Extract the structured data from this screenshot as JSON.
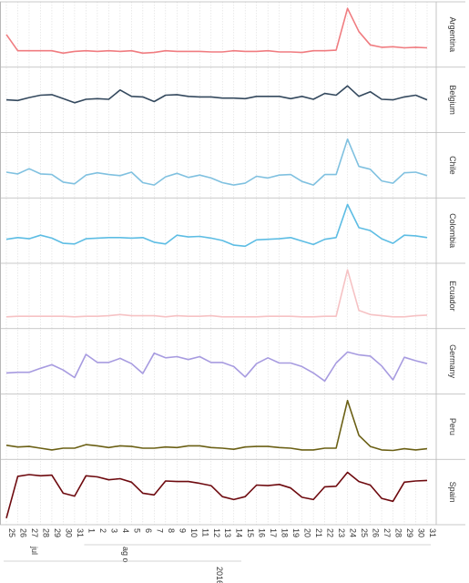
{
  "chart_data": {
    "type": "line",
    "title": "",
    "x": [
      "25",
      "26",
      "27",
      "28",
      "29",
      "30",
      "31",
      "1",
      "2",
      "3",
      "4",
      "5",
      "6",
      "7",
      "8",
      "9",
      "10",
      "11",
      "12",
      "13",
      "14",
      "15",
      "16",
      "17",
      "18",
      "19",
      "20",
      "21",
      "22",
      "23",
      "24",
      "25",
      "26",
      "27",
      "28",
      "29",
      "30",
      "31"
    ],
    "month_labels": [
      {
        "label": "jul",
        "start": 0
      },
      {
        "label": "ag o",
        "start": 7
      }
    ],
    "year_label": "2016",
    "grid": true,
    "series": [
      {
        "name": "Argentina",
        "color": "#f07c80",
        "values": [
          50,
          22,
          22,
          22,
          22,
          18,
          21,
          22,
          21,
          22,
          21,
          22,
          18,
          19,
          22,
          21,
          21,
          21,
          20,
          20,
          22,
          21,
          21,
          22,
          20,
          20,
          19,
          22,
          22,
          23,
          95,
          55,
          32,
          28,
          29,
          27,
          28,
          27
        ]
      },
      {
        "name": "Belgium",
        "color": "#34495e",
        "values": [
          50,
          49,
          54,
          58,
          59,
          52,
          45,
          51,
          52,
          51,
          67,
          56,
          55,
          47,
          58,
          59,
          56,
          55,
          55,
          53,
          53,
          52,
          56,
          56,
          56,
          52,
          56,
          51,
          61,
          58,
          74,
          56,
          64,
          51,
          50,
          55,
          58,
          50
        ]
      },
      {
        "name": "Chile",
        "color": "#80c1e0",
        "values": [
          38,
          35,
          44,
          35,
          34,
          21,
          18,
          33,
          37,
          34,
          32,
          38,
          20,
          16,
          30,
          36,
          29,
          33,
          28,
          20,
          16,
          19,
          31,
          28,
          33,
          34,
          22,
          16,
          34,
          34,
          95,
          48,
          43,
          23,
          19,
          37,
          38,
          32
        ]
      },
      {
        "name": "Colombia",
        "color": "#5dbde4",
        "values": [
          35,
          38,
          36,
          42,
          37,
          28,
          27,
          36,
          37,
          38,
          38,
          37,
          38,
          30,
          27,
          42,
          39,
          40,
          37,
          33,
          25,
          23,
          34,
          35,
          36,
          38,
          32,
          26,
          35,
          38,
          95,
          55,
          50,
          36,
          28,
          42,
          41,
          38
        ]
      },
      {
        "name": "Ecuador",
        "color": "#f6c2c4",
        "values": [
          14,
          15,
          15,
          15,
          15,
          15,
          14,
          15,
          15,
          16,
          18,
          16,
          16,
          16,
          14,
          16,
          15,
          15,
          16,
          14,
          14,
          14,
          14,
          15,
          15,
          15,
          14,
          14,
          15,
          15,
          95,
          25,
          18,
          16,
          14,
          14,
          16,
          17
        ]
      },
      {
        "name": "Germany",
        "color": "#a79be0",
        "values": [
          30,
          31,
          31,
          38,
          44,
          35,
          22,
          62,
          48,
          48,
          55,
          46,
          29,
          64,
          56,
          58,
          53,
          58,
          48,
          48,
          41,
          23,
          46,
          56,
          47,
          47,
          41,
          30,
          16,
          47,
          66,
          61,
          59,
          42,
          18,
          57,
          51,
          46
        ]
      },
      {
        "name": "Peru",
        "color": "#6b6015",
        "values": [
          18,
          15,
          16,
          13,
          10,
          13,
          13,
          19,
          17,
          14,
          17,
          16,
          13,
          13,
          15,
          14,
          17,
          17,
          14,
          13,
          11,
          15,
          16,
          16,
          14,
          13,
          10,
          10,
          13,
          13,
          95,
          35,
          16,
          10,
          9,
          12,
          10,
          12
        ]
      },
      {
        "name": "Spain",
        "color": "#6e0a0f",
        "values": [
          5,
          77,
          80,
          78,
          79,
          48,
          43,
          78,
          76,
          71,
          73,
          67,
          48,
          45,
          69,
          68,
          68,
          65,
          61,
          42,
          37,
          42,
          62,
          61,
          63,
          57,
          41,
          37,
          59,
          60,
          84,
          68,
          62,
          39,
          34,
          67,
          69,
          70
        ]
      }
    ]
  }
}
